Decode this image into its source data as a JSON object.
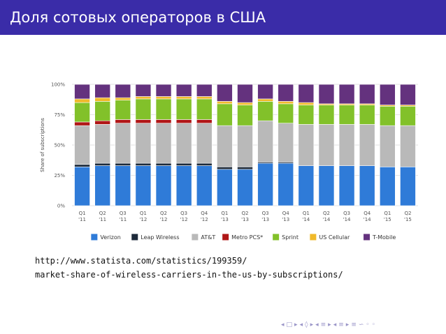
{
  "slide": {
    "title": "Доля сотовых операторов в США",
    "url_line1": "http://www.statista.com/statistics/199359/",
    "url_line2": "market-share-of-wireless-carriers-in-the-us-by-subscriptions/"
  },
  "nav": {
    "glyphs": [
      "◂",
      "□",
      "▸",
      "◂",
      "◊",
      "▸",
      "◂",
      "≡",
      "▸",
      "◂",
      "≡",
      "▸",
      "≡",
      "∽",
      "◦",
      "◦"
    ]
  },
  "chart_data": {
    "type": "bar",
    "stacked": true,
    "ylabel": "Share of subscriptions",
    "ylim": [
      0,
      100
    ],
    "yticks": [
      0,
      25,
      50,
      75,
      100
    ],
    "ytick_labels": [
      "0%",
      "25%",
      "50%",
      "75%",
      "100%"
    ],
    "grid": true,
    "legend_position": "bottom",
    "categories": [
      [
        "Q1",
        "'11"
      ],
      [
        "Q2",
        "'11"
      ],
      [
        "Q3",
        "'11"
      ],
      [
        "Q1",
        "'12"
      ],
      [
        "Q2",
        "'12"
      ],
      [
        "Q3",
        "'12"
      ],
      [
        "Q4",
        "'12"
      ],
      [
        "Q1",
        "'13"
      ],
      [
        "Q2",
        "'13"
      ],
      [
        "Q3",
        "'13"
      ],
      [
        "Q4",
        "'13"
      ],
      [
        "Q1",
        "'14"
      ],
      [
        "Q2",
        "'14"
      ],
      [
        "Q3",
        "'14"
      ],
      [
        "Q4",
        "'14"
      ],
      [
        "Q1",
        "'15"
      ],
      [
        "Q2",
        "'15"
      ]
    ],
    "series": [
      {
        "name": "Verizon",
        "color": "#2f7bd8",
        "values": [
          32,
          33,
          33,
          33,
          33,
          33,
          33,
          30,
          30,
          35,
          35,
          33,
          33,
          33,
          33,
          32,
          32
        ]
      },
      {
        "name": "Leap Wireless",
        "color": "#1d2a3a",
        "values": [
          2,
          2,
          2,
          2,
          2,
          2,
          2,
          2,
          2,
          1,
          1,
          0,
          0,
          0,
          0,
          0,
          0
        ]
      },
      {
        "name": "AT&T",
        "color": "#b9b9b9",
        "values": [
          32,
          32,
          33,
          33,
          33,
          33,
          33,
          34,
          34,
          34,
          32,
          34,
          34,
          34,
          34,
          34,
          34
        ]
      },
      {
        "name": "Metro PCS*",
        "color": "#b01717",
        "values": [
          3,
          3,
          3,
          3,
          3,
          3,
          3,
          0,
          0,
          0,
          0,
          0,
          0,
          0,
          0,
          0,
          0
        ]
      },
      {
        "name": "Sprint",
        "color": "#82c12a",
        "values": [
          16,
          16,
          16,
          17,
          17,
          17,
          17,
          18,
          17,
          16,
          16,
          16,
          16,
          16,
          16,
          16,
          16
        ]
      },
      {
        "name": "US Cellular",
        "color": "#f0b92a",
        "values": [
          3,
          3,
          2,
          2,
          2,
          2,
          2,
          2,
          2,
          2,
          2,
          2,
          1,
          1,
          1,
          1,
          1
        ]
      },
      {
        "name": "T-Mobile",
        "color": "#64327e",
        "values": [
          12,
          11,
          11,
          10,
          10,
          10,
          10,
          14,
          15,
          12,
          14,
          15,
          16,
          16,
          16,
          17,
          17
        ]
      }
    ]
  }
}
